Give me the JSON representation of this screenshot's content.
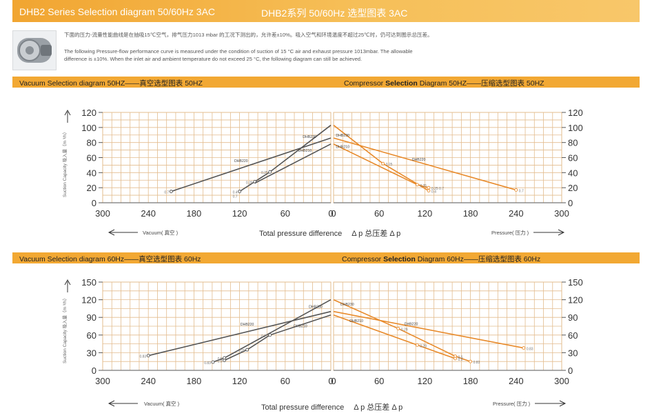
{
  "header": {
    "title_en": "DHB2 Series Selection diagram 50/60Hz 3AC",
    "title_cn": "DHB2系列 50/60Hz 选型图表 3AC"
  },
  "intro": {
    "cn": "下面的压力-流量性能曲线是在抽吸15℃空气，排气压力1013 mbar 的工况下测出的，允许差±10%。吸入空气和环境温度不超过25℃时，仍可达到图示总压差。",
    "en1": "The following Pressure-flow performance curve is measured under the condition of suction of 15 °C air and exhaust pressure 1013mbar. The allowable",
    "en2": "difference is ±10%. When the inlet air and ambient temperature do not exceed 25 °C, the following diagram can still be achieved."
  },
  "sections": [
    {
      "left": "Vacuum Selection diagram 50HZ——真空选型图表 50HZ",
      "right_pre": "Compressor ",
      "right_bold": "Selection",
      "right_post": " Diagram 50HZ——压缩选型图表 50HZ"
    },
    {
      "left": "Vacuum Selection diagram 60Hz——真空选型图表 60Hz",
      "right_pre": "Compressor ",
      "right_bold": "Selection",
      "right_post": " Diagram 60Hz——压缩选型图表 60Hz"
    }
  ],
  "common": {
    "ylabel": "Suction Capacity 吸入量（m ³/h）",
    "xlabel": "Total pressure difference　 Δ p 总压差  Δ p",
    "vacuum_label": "Vacuum( 真空 )",
    "pressure_label": "Pressure( 压力 )"
  },
  "colors": {
    "vacuum": "#555555",
    "compressor": "#e88a2a",
    "grid": "#e3bc8e"
  },
  "chart_data": [
    {
      "type": "line",
      "title": "Vacuum Selection diagram 50HZ",
      "xlim": [
        300,
        0
      ],
      "ylim": [
        0,
        120
      ],
      "xticks": [
        300,
        240,
        180,
        120,
        60,
        0
      ],
      "yticks": [
        0,
        20,
        40,
        60,
        80,
        100,
        120
      ],
      "series": [
        {
          "name": "DHB220",
          "points": [
            [
              210,
              15
            ],
            [
              0,
              86
            ]
          ],
          "labels": [
            {
              "x": 210,
              "y": 15,
              "t": "0.7"
            }
          ],
          "tag": {
            "x": 118,
            "y": 54
          }
        },
        {
          "name": "DHB230",
          "points": [
            [
              120,
              15
            ],
            [
              100,
              28
            ],
            [
              80,
              41
            ],
            [
              0,
              103
            ]
          ],
          "labels": [
            {
              "x": 120,
              "y": 15,
              "t": "0.4\n0.7"
            },
            {
              "x": 100,
              "y": 28,
              "t": "0.25"
            },
            {
              "x": 80,
              "y": 41,
              "t": "0.25"
            }
          ],
          "tag": {
            "x": 28,
            "y": 86
          }
        },
        {
          "name": "DHB210",
          "points": [
            [
              100,
              26
            ],
            [
              0,
              78
            ]
          ],
          "labels": [],
          "tag": {
            "x": 34,
            "y": 68
          }
        }
      ]
    },
    {
      "type": "line",
      "title": "Compressor Selection Diagram 50HZ",
      "xlim": [
        0,
        300
      ],
      "ylim": [
        0,
        120
      ],
      "xticks": [
        0,
        60,
        120,
        180,
        240,
        300
      ],
      "yticks": [
        0,
        20,
        40,
        60,
        80,
        100,
        120
      ],
      "series": [
        {
          "name": "DHB230",
          "points": [
            [
              0,
              103
            ],
            [
              65,
              52
            ],
            [
              125,
              16
            ]
          ],
          "labels": [
            {
              "x": 65,
              "y": 52,
              "t": "0.25"
            },
            {
              "x": 125,
              "y": 16,
              "t": "0.4"
            }
          ],
          "tag": {
            "x": 12,
            "y": 88
          }
        },
        {
          "name": "DHB210",
          "points": [
            [
              0,
              78
            ],
            [
              110,
              24
            ],
            [
              125,
              20
            ]
          ],
          "labels": [
            {
              "x": 110,
              "y": 24,
              "t": "0.25"
            },
            {
              "x": 125,
              "y": 20,
              "t": "0.25 0.7"
            }
          ],
          "tag": {
            "x": 12,
            "y": 73
          }
        },
        {
          "name": "DHB220",
          "points": [
            [
              0,
              86
            ],
            [
              240,
              17
            ]
          ],
          "labels": [
            {
              "x": 240,
              "y": 17,
              "t": "0.7"
            }
          ],
          "tag": {
            "x": 112,
            "y": 56
          }
        }
      ]
    },
    {
      "type": "line",
      "title": "Vacuum Selection diagram 60Hz",
      "xlim": [
        300,
        0
      ],
      "ylim": [
        0,
        150
      ],
      "xticks": [
        300,
        240,
        180,
        120,
        60,
        0
      ],
      "yticks": [
        0,
        30,
        60,
        90,
        120,
        150
      ],
      "series": [
        {
          "name": "DHB220",
          "points": [
            [
              240,
              25
            ],
            [
              0,
              100
            ]
          ],
          "labels": [
            {
              "x": 240,
              "y": 25,
              "t": "0.83"
            }
          ],
          "tag": {
            "x": 110,
            "y": 76
          }
        },
        {
          "name": "DHB230",
          "points": [
            [
              155,
              14
            ],
            [
              140,
              21
            ],
            [
              0,
              120
            ]
          ],
          "labels": [
            {
              "x": 155,
              "y": 14,
              "t": "0.83"
            },
            {
              "x": 140,
              "y": 21,
              "t": "0.5"
            }
          ],
          "tag": {
            "x": 20,
            "y": 106
          }
        },
        {
          "name": "DHB210",
          "points": [
            [
              140,
              17
            ],
            [
              110,
              35
            ],
            [
              80,
              60
            ],
            [
              0,
              94
            ]
          ],
          "labels": [
            {
              "x": 140,
              "y": 17,
              "t": "0.5"
            },
            {
              "x": 110,
              "y": 35,
              "t": "0.29"
            },
            {
              "x": 80,
              "y": 60,
              "t": "0.29"
            }
          ],
          "tag": {
            "x": 40,
            "y": 73
          }
        }
      ]
    },
    {
      "type": "line",
      "title": "Compressor Selection Diagram 60Hz",
      "xlim": [
        0,
        300
      ],
      "ylim": [
        0,
        150
      ],
      "xticks": [
        0,
        60,
        120,
        180,
        240,
        300
      ],
      "yticks": [
        0,
        30,
        60,
        90,
        120,
        150
      ],
      "series": [
        {
          "name": "DHB230",
          "points": [
            [
              0,
              120
            ],
            [
              85,
              71
            ],
            [
              160,
              24
            ],
            [
              180,
              15
            ]
          ],
          "labels": [
            {
              "x": 85,
              "y": 71,
              "t": "0.29"
            },
            {
              "x": 160,
              "y": 24,
              "t": "0.5"
            },
            {
              "x": 180,
              "y": 15,
              "t": "0.83"
            }
          ],
          "tag": {
            "x": 18,
            "y": 110
          }
        },
        {
          "name": "DHB210",
          "points": [
            [
              0,
              94
            ],
            [
              110,
              43
            ],
            [
              160,
              20
            ]
          ],
          "labels": [
            {
              "x": 110,
              "y": 43,
              "t": "0.29"
            },
            {
              "x": 160,
              "y": 20,
              "t": "0.5"
            }
          ],
          "tag": {
            "x": 30,
            "y": 82
          }
        },
        {
          "name": "DHB220",
          "points": [
            [
              0,
              100
            ],
            [
              250,
              38
            ]
          ],
          "labels": [
            {
              "x": 250,
              "y": 38,
              "t": "0.83"
            }
          ],
          "tag": {
            "x": 102,
            "y": 77
          }
        }
      ]
    }
  ]
}
